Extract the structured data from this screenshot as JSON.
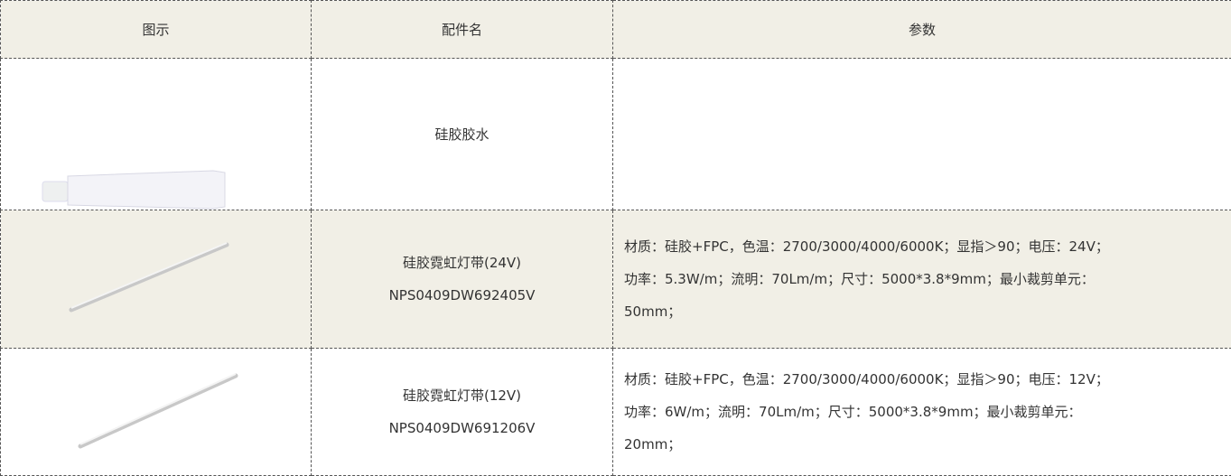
{
  "table": {
    "header": [
      "图示",
      "配件名",
      "参数"
    ],
    "rows": [
      {
        "name": [
          "硅胶胶水"
        ]
      },
      {
        "name": [
          "硅胶霓虹灯带(24V)",
          "NPS0409DW692405V"
        ],
        "params": [
          "材质：硅胶+FPC，色温：2700/3000/4000/6000K；显指＞90；电压：24V；",
          "功率：5.3W/m；流明：70Lm/m；尺寸：5000*3.8*9mm；最小裁剪单元：",
          "50mm；"
        ]
      },
      {
        "name": [
          "硅胶霓虹灯带(12V)",
          "NPS0409DW691206V"
        ],
        "params": [
          "材质：硅胶+FPC，色温：2700/3000/4000/6000K；显指＞90；电压：12V；",
          "功率：6W/m；流明：70Lm/m；尺寸：5000*3.8*9mm；最小裁剪单元：",
          "20mm；"
        ]
      }
    ]
  }
}
